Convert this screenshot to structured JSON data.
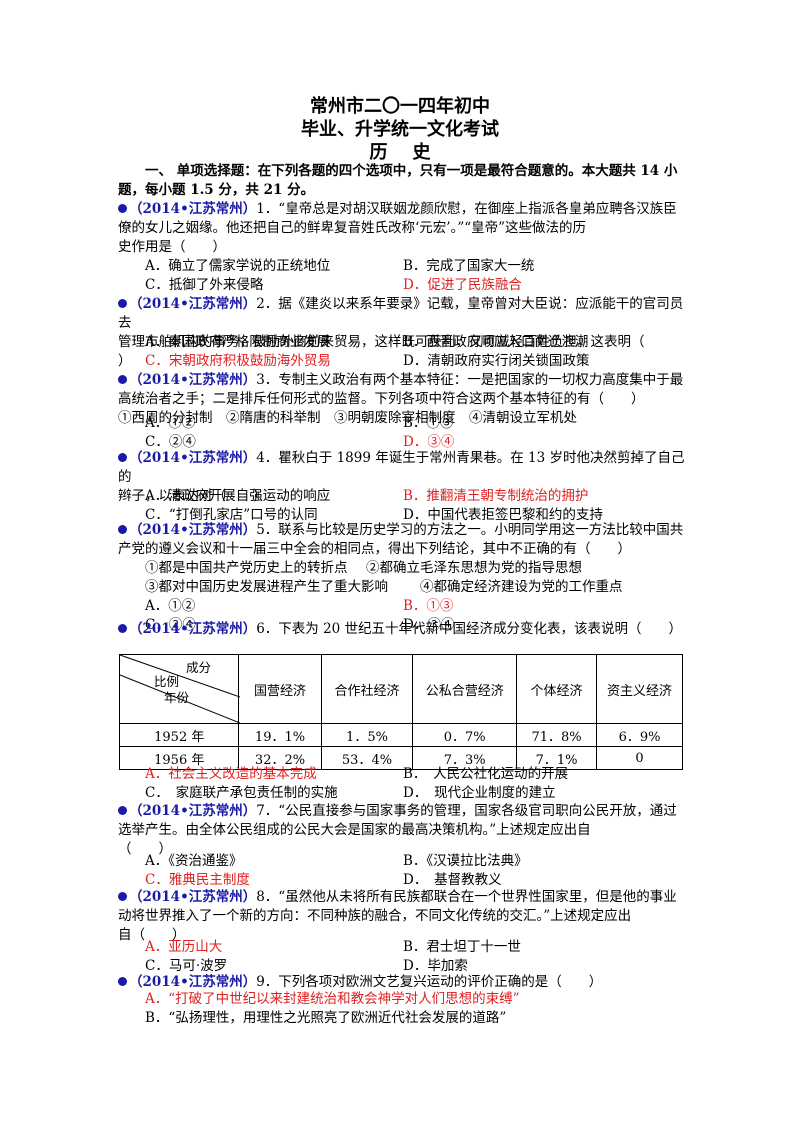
{
  "header": {
    "line1": "常州市二〇一四年初中",
    "line2": "毕业、升学统一文化考试",
    "line3": "历    史"
  },
  "section1": {
    "line1": "一、 单项选择题：在下列各题的四个选项中，只有一项是最符合题意的。本大题共 14 小",
    "line2": "题，每小题 1.5 分，共 21 分。"
  },
  "tag": "（2014•江苏常州）",
  "q1": {
    "l1": "1．“皇帝总是对胡汉联姻龙颜欣慰，在御座上指派各皇弟应聘各汉族臣",
    "l2": "僚的女儿之姻缘。他还把自己的鲜卑复音姓氏改称‘元宏’。”“皇帝”这些做法的历",
    "l3": "史作用是（　　）",
    "A": "A．确立了儒家学说的正统地位",
    "B": "B．完成了国家大一统",
    "C": "C．抵御了外来侵略",
    "D": "D．促进了民族融合"
  },
  "q2": {
    "l1": "2．据《建炎以来系年要录》记载，皇帝曾对大臣说：应派能干的官司员去",
    "l2": "管理市舶机构的事务，鼓励外商前来贸易，这样既可获利，又可减轻百姓负担。这表明（",
    "l3": "）",
    "A": "A．秦国政府严格限制商业发展",
    "B": "B．西晋政府顺应入口南迁浪潮",
    "C": "C．宋朝政府积极鼓励海外贸易",
    "D": "D．清朝政府实行闭关锁国政策"
  },
  "q3": {
    "l1": "3．专制主义政治有两个基本特征：一是把国家的一切权力高度集中于最",
    "l2": "高统治者之手；二是排斥任何形式的监督。下列各项中符合这两个基本特征的有（　　）",
    "l3": "①西周的分封制　②隋唐的科举制　③明朝废除宰相制度　④清朝设立军机处",
    "A": "A．①②",
    "B": "B．①③",
    "C": "C．②④",
    "D": "D．③④"
  },
  "q4": {
    "l1": "4．瞿秋白于 1899 年诞生于常州青果巷。在 13 岁时他决然剪掉了自己的",
    "l2": "辫子，以表达对（　　）",
    "A": "A．清政府开展自强运动的响应",
    "B": "B．推翻清王朝专制统治的拥护",
    "C": "C．“打倒孔家店”口号的认同",
    "D": "D．中国代表拒签巴黎和约的支持"
  },
  "q5": {
    "l1": "5．联系与比较是历史学习的方法之一。小明同学用这一方法比较中国共",
    "l2": "产党的遵义会议和十一届三中全会的相同点，得出下列结论，其中不正确的有（　　）",
    "l3a": "①都是中国共产党历史上的转折点",
    "l3b": "②都确立毛泽东思想为党的指导思想",
    "l4a": "③都对中国历史发展进程产生了重大影响",
    "l4b": "④都确定经济建设为党的工作重点",
    "A": "A．①②",
    "B": "B．①③",
    "C": "C．②④",
    "D": "D．③④"
  },
  "q6": {
    "l1": "6．下表为 20 世纪五十年代新中国经济成分变化表，该表说明（　　）",
    "diag_top": "成分",
    "diag_mid": "比例",
    "diag_bot": "年份",
    "columns": [
      "国营经济",
      "合作社经济",
      "公私合营经济",
      "个体经济",
      "资主义经济"
    ],
    "rows": [
      {
        "year": "1952 年",
        "cells": [
          "19．1%",
          "1．5%",
          "0．7%",
          "71．8%",
          "6．9%"
        ]
      },
      {
        "year": "1956 年",
        "cells": [
          "32．2%",
          "53．4%",
          "7．3%",
          "7．1%",
          "0"
        ]
      }
    ],
    "A": "A．社会主义改造的基本完成",
    "B": "B．　人民公社化运动的开展",
    "C": "C．　家庭联产承包责任制的实施",
    "D": "D．　现代企业制度的建立"
  },
  "q7": {
    "l1": "7．“公民直接参与国家事务的管理，国家各级官司职向公民开放，通过",
    "l2": "选举产生。由全体公民组成的公民大会是国家的最高决策机构。”上述规定应出自",
    "l3": "（　　）",
    "A": "A．《资治通鉴》",
    "B": "B．《汉谟拉比法典》",
    "C": "C．雅典民主制度",
    "D": "D．　基督教教义"
  },
  "q8": {
    "l1": "8．“虽然他从未将所有民族都联合在一个世界性国家里，但是他的事业",
    "l2": "动将世界推入了一个新的方向：不同种族的融合，不同文化传统的交汇。”上述规定应出",
    "l3": "自（　　）",
    "A": "A．亚历山大",
    "B": "B．君士坦丁十一世",
    "C": "C．马可·波罗",
    "D": "D．毕加索"
  },
  "q9": {
    "l1": "9．下列各项对欧洲文艺复兴运动的评价正确的是（　　）",
    "A": "A．“打破了中世纪以来封建统治和教会神学对人们思想的束缚”",
    "B": "B．“弘扬理性，用理性之光照亮了欧洲近代社会发展的道路”"
  },
  "colors": {
    "tag": "#1a1aa8",
    "answer": "#e02020"
  }
}
